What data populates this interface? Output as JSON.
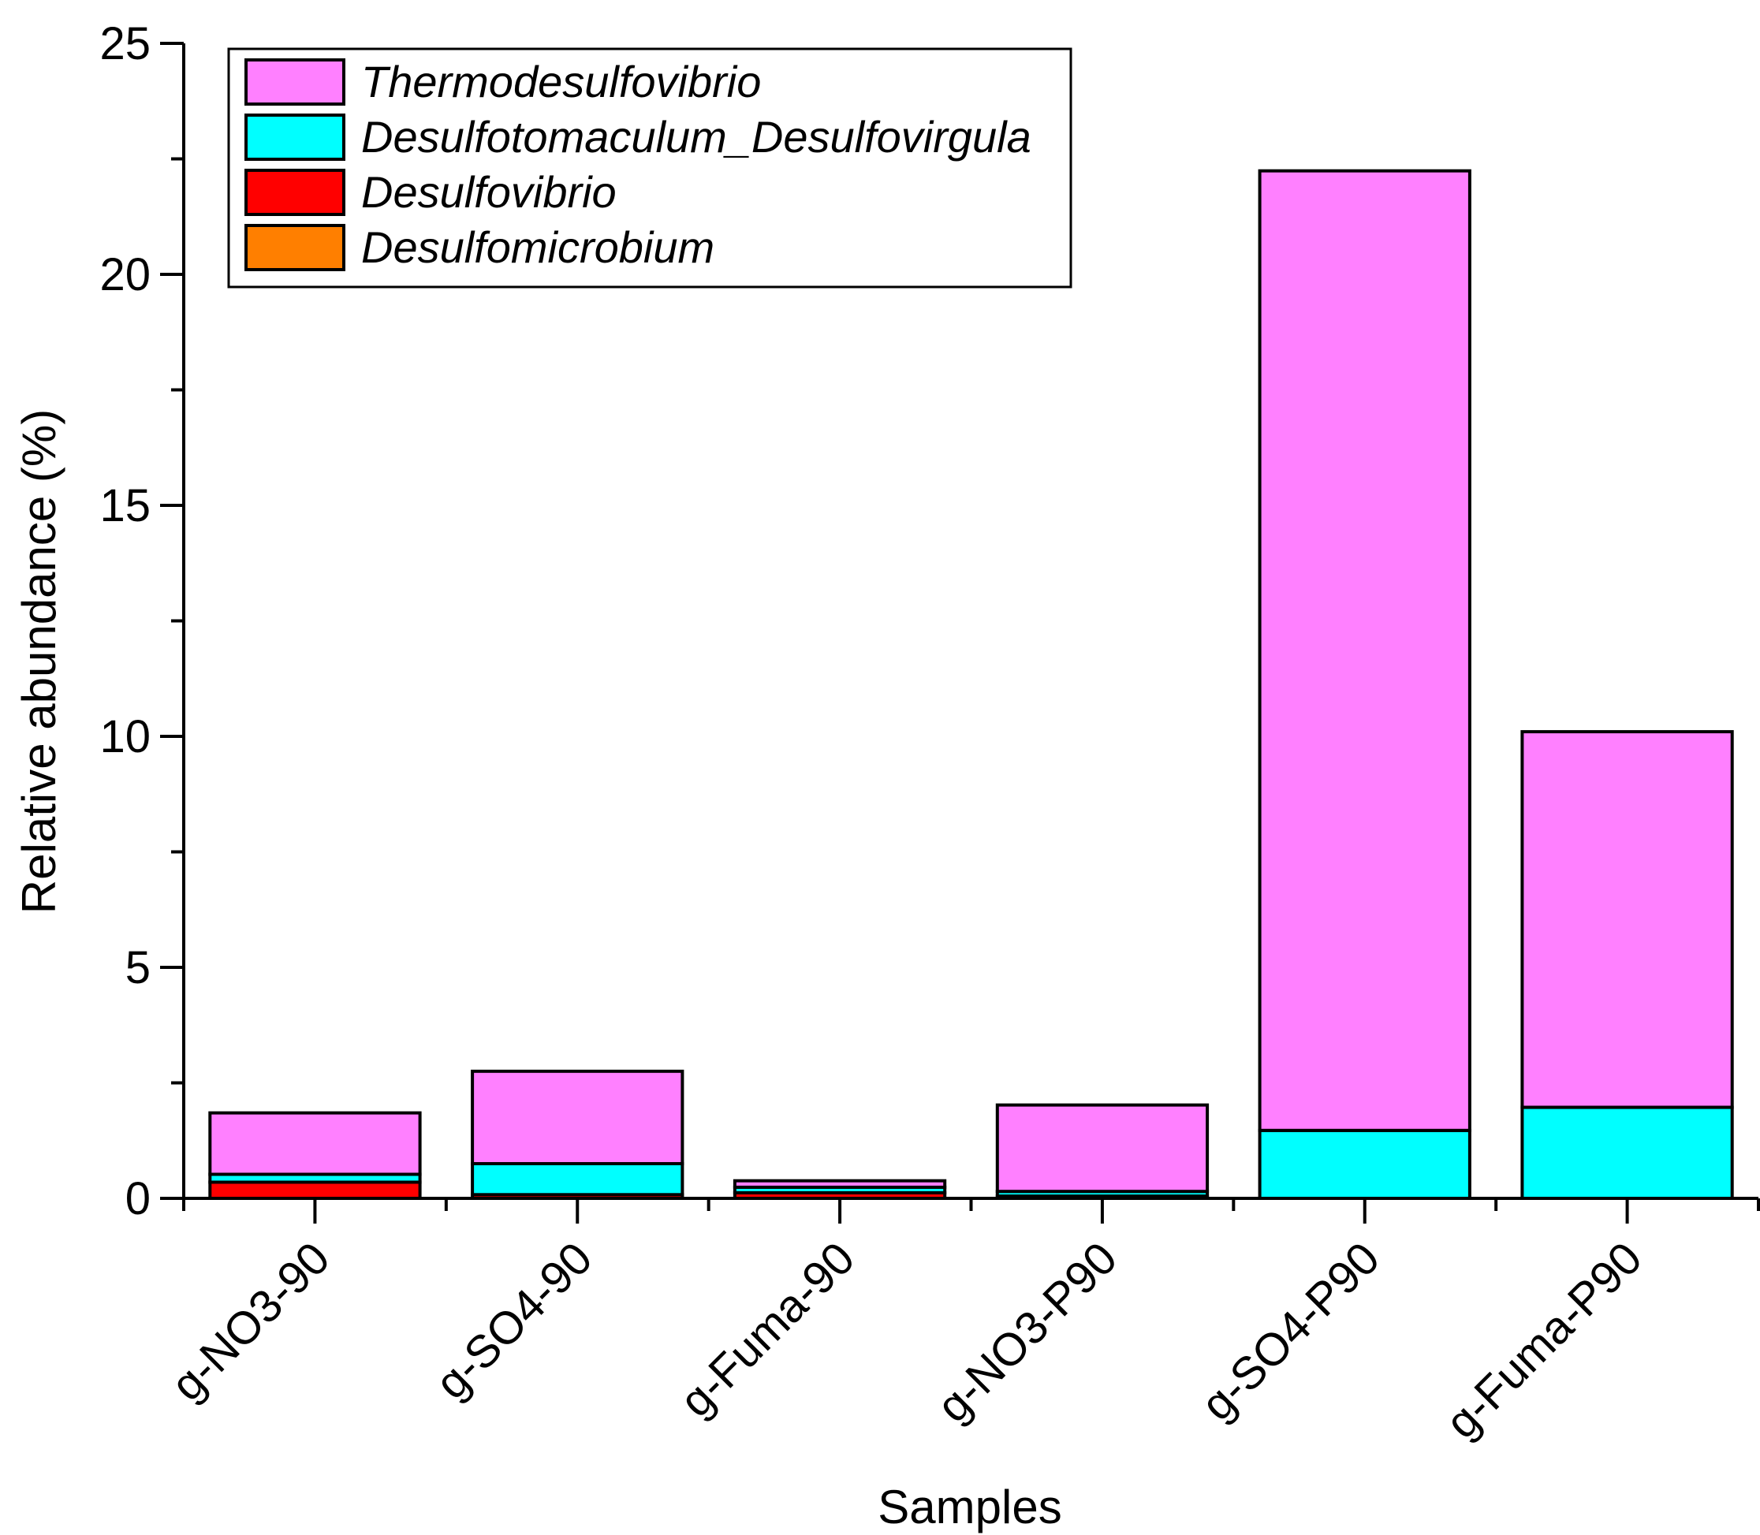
{
  "chart_data": {
    "type": "bar",
    "stacked": true,
    "xlabel": "Samples",
    "ylabel": "Relative abundance (%)",
    "ylim": [
      0,
      25
    ],
    "yticks": [
      0,
      5,
      10,
      15,
      20,
      25
    ],
    "legend_position": "top-left",
    "categories": [
      "g-NO3-90",
      "g-SO4-90",
      "g-Fuma-90",
      "g-NO3-P90",
      "g-SO4-P90",
      "g-Fuma-P90"
    ],
    "series": [
      {
        "name": "Desulfomicrobium",
        "color": "#FF7F00",
        "values": [
          0.0,
          0.0,
          0.0,
          0.0,
          0.0,
          0.0
        ]
      },
      {
        "name": "Desulfovibrio",
        "color": "#FF0000",
        "values": [
          0.35,
          0.08,
          0.12,
          0.05,
          0.0,
          0.0
        ]
      },
      {
        "name": "Desulfotomaculum_Desulfovirgula",
        "color": "#00FFFF",
        "values": [
          0.17,
          0.67,
          0.12,
          0.1,
          1.47,
          1.97
        ]
      },
      {
        "name": "Thermodesulfovibrio",
        "color": "#FF80FF",
        "values": [
          1.33,
          2.0,
          0.14,
          1.87,
          20.77,
          8.13
        ]
      }
    ],
    "legend_order": [
      "Thermodesulfovibrio",
      "Desulfotomaculum_Desulfovirgula",
      "Desulfovibrio",
      "Desulfomicrobium"
    ]
  }
}
